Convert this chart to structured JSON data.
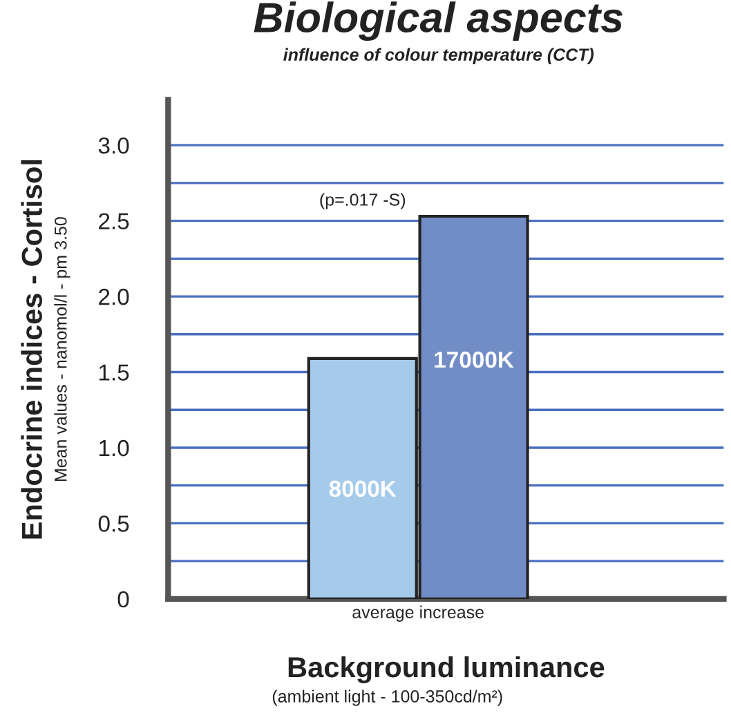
{
  "chart_data": {
    "type": "bar",
    "title": "Biological aspects",
    "subtitle": "influence of colour temperature (CCT)",
    "xlabel": "Background luminance",
    "ylabel": "Endocrine indices - Cortisol",
    "annotations": [
      "(p=.017 -S)",
      "Mean values - nanomol/l - pm 3.50",
      "(ambient light - 100-350cd/m²)"
    ],
    "categories": [
      "average increase"
    ],
    "series": [
      {
        "name": "8000K",
        "color": "#a6cbea",
        "values": [
          1.59
        ]
      },
      {
        "name": "17000K",
        "color": "#728dc6",
        "values": [
          2.53
        ]
      }
    ],
    "ylim": [
      0,
      3.3
    ],
    "yticks": [
      0,
      {
        "value": 0.25,
        "label": null
      },
      0.5,
      {
        "value": 0.75,
        "label": null
      },
      {
        "value": 1.0,
        "label": "1.0"
      },
      {
        "value": 1.25,
        "label": null
      },
      1.5,
      {
        "value": 1.75,
        "label": null
      },
      {
        "value": 2.0,
        "label": "2.0"
      },
      {
        "value": 2.25,
        "label": null
      },
      2.5,
      {
        "value": 2.75,
        "label": null
      },
      {
        "value": 3.0,
        "label": "3.0"
      }
    ],
    "grid": "y",
    "legend": false
  }
}
